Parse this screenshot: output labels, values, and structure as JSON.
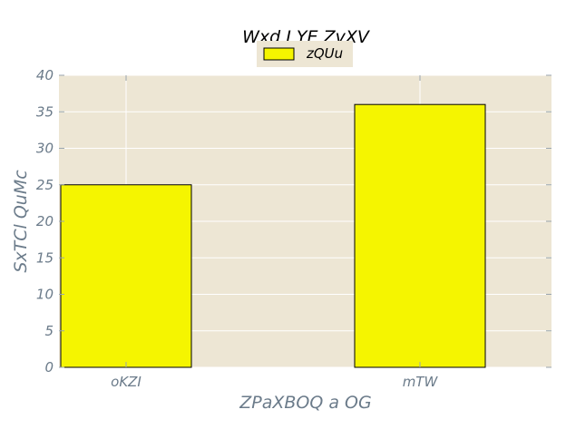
{
  "chart_data": {
    "type": "bar",
    "title": "Wxd I YE ZvXV",
    "xlabel": "ZPaXBOQ a OG",
    "ylabel": "SxTCl QuMc",
    "categories": [
      "oKZI",
      "mTW"
    ],
    "series": [
      {
        "name": "zQUu",
        "values": [
          25,
          36
        ],
        "color": "#f5f500"
      }
    ],
    "ylim": [
      0,
      40
    ],
    "yticks": [
      0,
      5,
      10,
      15,
      20,
      25,
      30,
      35,
      40
    ],
    "grid": true,
    "legend": "top-center",
    "colors": {
      "plot_background": "#ede6d4",
      "grid": "#ffffff",
      "bar_edge": "#000000"
    }
  }
}
